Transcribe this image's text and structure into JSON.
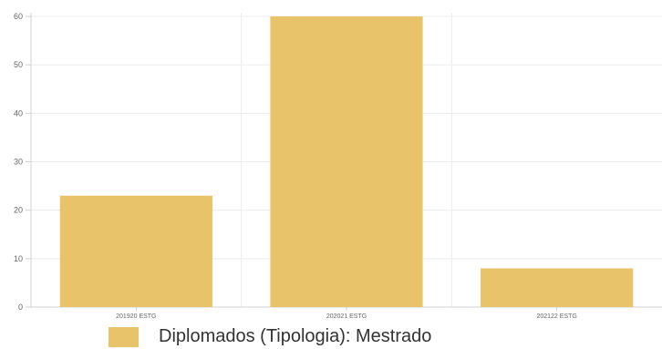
{
  "chart_data": {
    "type": "bar",
    "categories": [
      "201920 ESTG",
      "202021 ESTG",
      "202122 ESTG"
    ],
    "series": [
      {
        "name": "Diplomados (Tipologia): Mestrado",
        "values": [
          23,
          60,
          8
        ],
        "color": "#e8c36a"
      }
    ],
    "ylim": [
      0,
      60
    ],
    "yticks": [
      "0",
      "10",
      "20",
      "30",
      "40",
      "50",
      "60"
    ],
    "grid": true,
    "legend_position": "bottom"
  }
}
